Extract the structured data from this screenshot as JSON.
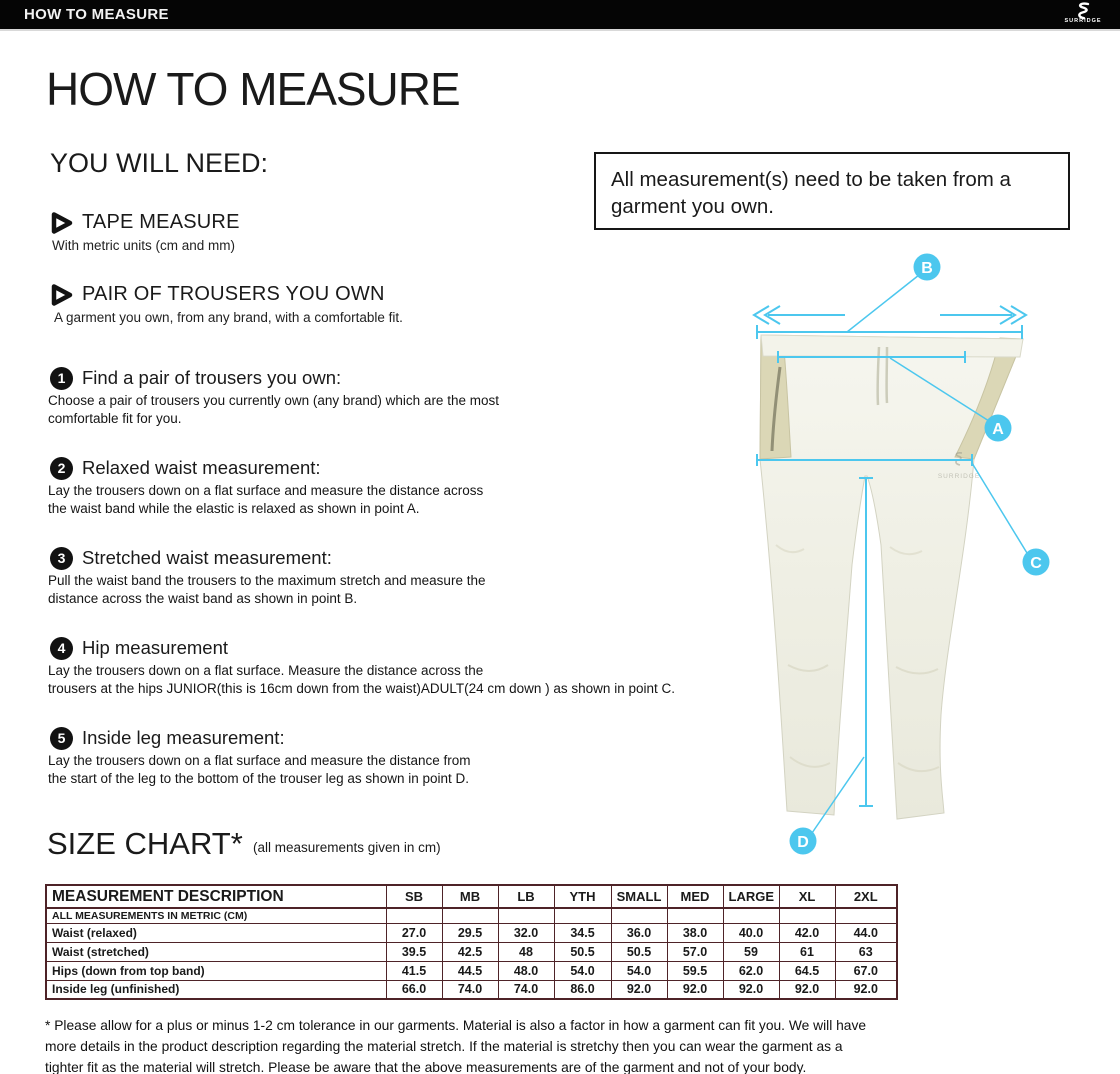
{
  "header": {
    "title": "HOW TO MEASURE",
    "brand": "SURRIDGE"
  },
  "main": {
    "title": "HOW TO MEASURE",
    "you_will_need": {
      "heading": "YOU WILL NEED:",
      "items": [
        {
          "title": "TAPE MEASURE",
          "subtitle": "With metric units (cm and mm)"
        },
        {
          "title": "PAIR OF TROUSERS YOU OWN",
          "subtitle": "A garment you own, from any brand, with a comfortable fit."
        }
      ]
    },
    "steps": [
      {
        "num": "1",
        "title": "Find a pair of trousers you own:",
        "body": "Choose a pair of trousers you currently own (any brand) which are the most\ncomfortable fit for you."
      },
      {
        "num": "2",
        "title": "Relaxed waist measurement:",
        "body": "Lay the trousers down on a flat surface and measure the distance across\nthe waist band while the elastic is relaxed as shown in point A."
      },
      {
        "num": "3",
        "title": "Stretched waist measurement:",
        "body": "Pull the waist band the trousers to the maximum stretch and measure the\ndistance across the waist band as shown in point B."
      },
      {
        "num": "4",
        "title": "Hip measurement",
        "body": "Lay the trousers down on a flat surface. Measure the distance across the\ntrousers at the hips JUNIOR(this is 16cm down from the waist)ADULT(24 cm down ) as shown in point C."
      },
      {
        "num": "5",
        "title": "Inside leg measurement:",
        "body": "Lay the trousers down on a flat surface and measure the distance from\nthe start of the leg to the bottom of the trouser leg as shown in point D."
      }
    ],
    "note": "All measurement(s) need to be taken from a\ngarment you own.",
    "figure": {
      "accent": "#4cc7ee",
      "watermark": "SURRIDGE",
      "points": [
        {
          "label": "A"
        },
        {
          "label": "B"
        },
        {
          "label": "C"
        },
        {
          "label": "D"
        }
      ]
    },
    "size_chart": {
      "heading": "SIZE CHART*",
      "subheading": "(all measurements given in cm)",
      "columns": [
        "MEASUREMENT DESCRIPTION",
        "SB",
        "MB",
        "LB",
        "YTH",
        "SMALL",
        "MED",
        "LARGE",
        "XL",
        "2XL"
      ],
      "metric_label": "ALL MEASUREMENTS IN METRIC (CM)",
      "rows": [
        {
          "label": "Waist (relaxed)",
          "values": [
            "27.0",
            "29.5",
            "32.0",
            "34.5",
            "36.0",
            "38.0",
            "40.0",
            "42.0",
            "44.0"
          ]
        },
        {
          "label": "Waist (stretched)",
          "values": [
            "39.5",
            "42.5",
            "48",
            "50.5",
            "50.5",
            "57.0",
            "59",
            "61",
            "63"
          ]
        },
        {
          "label": "Hips (down from top band)",
          "values": [
            "41.5",
            "44.5",
            "48.0",
            "54.0",
            "54.0",
            "59.5",
            "62.0",
            "64.5",
            "67.0"
          ]
        },
        {
          "label": "Inside leg (unfinished)",
          "values": [
            "66.0",
            "74.0",
            "74.0",
            "86.0",
            "92.0",
            "92.0",
            "92.0",
            "92.0",
            "92.0"
          ]
        }
      ]
    },
    "footnote": "* Please allow for a plus or minus 1-2 cm tolerance in our garments. Material is also a factor in how a garment can fit you. We will have\nmore details in the product description regarding the material stretch.  If the material is stretchy then you can wear the garment as a\ntighter fit as the material will stretch.  Please be aware that the above measurements are of the garment and not of your body."
  }
}
